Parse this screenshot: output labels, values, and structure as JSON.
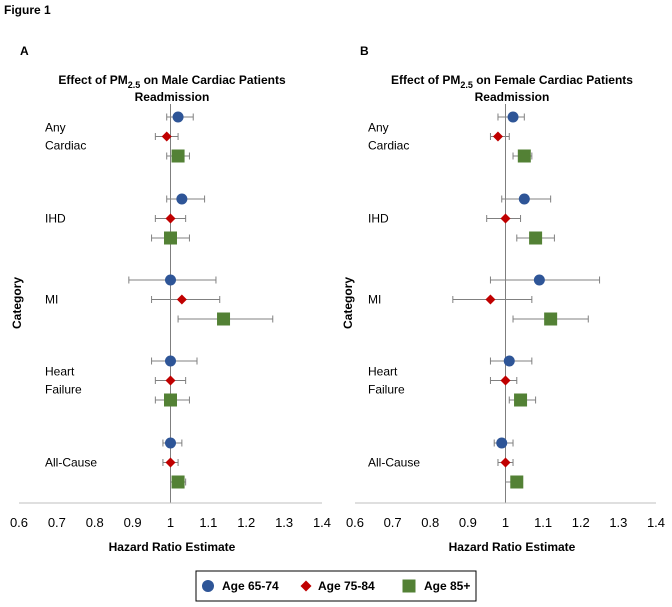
{
  "figure_title": "Figure 1",
  "legend": [
    {
      "label": "Age 65-74",
      "color": "#2E5597",
      "marker": "circle"
    },
    {
      "label": "Age 75-84",
      "color": "#C00000",
      "marker": "diamond"
    },
    {
      "label": "Age 85+",
      "color": "#538135",
      "marker": "square"
    }
  ],
  "chart_data": [
    {
      "type": "scatter",
      "panel": "A",
      "title_line1_pre": "Effect of PM",
      "title_sub": "2.5",
      "title_line1_post": " on Male Cardiac Patients",
      "title_line2": "Readmission",
      "xlabel": "Hazard Ratio Estimate",
      "ylabel": "Category",
      "xlim": [
        0.6,
        1.4
      ],
      "xticks": [
        "0.6",
        "0.7",
        "0.8",
        "0.9",
        "1",
        "1.1",
        "1.2",
        "1.3",
        "1.4"
      ],
      "categories": [
        {
          "lines": [
            "Any",
            "Cardiac"
          ]
        },
        {
          "lines": [
            "IHD"
          ]
        },
        {
          "lines": [
            "MI"
          ]
        },
        {
          "lines": [
            "Heart",
            "Failure"
          ]
        },
        {
          "lines": [
            "All-Cause"
          ]
        }
      ],
      "series": [
        {
          "name": "Age 65-74",
          "points": [
            {
              "est": 1.02,
              "lo": 0.99,
              "hi": 1.06
            },
            {
              "est": 1.03,
              "lo": 0.99,
              "hi": 1.09
            },
            {
              "est": 1.0,
              "lo": 0.89,
              "hi": 1.12
            },
            {
              "est": 1.0,
              "lo": 0.95,
              "hi": 1.07
            },
            {
              "est": 1.0,
              "lo": 0.98,
              "hi": 1.03
            }
          ]
        },
        {
          "name": "Age 75-84",
          "points": [
            {
              "est": 0.99,
              "lo": 0.96,
              "hi": 1.02
            },
            {
              "est": 1.0,
              "lo": 0.96,
              "hi": 1.04
            },
            {
              "est": 1.03,
              "lo": 0.95,
              "hi": 1.13
            },
            {
              "est": 1.0,
              "lo": 0.96,
              "hi": 1.04
            },
            {
              "est": 1.0,
              "lo": 0.98,
              "hi": 1.02
            }
          ]
        },
        {
          "name": "Age 85+",
          "points": [
            {
              "est": 1.02,
              "lo": 0.99,
              "hi": 1.05
            },
            {
              "est": 1.0,
              "lo": 0.95,
              "hi": 1.05
            },
            {
              "est": 1.14,
              "lo": 1.02,
              "hi": 1.27
            },
            {
              "est": 1.0,
              "lo": 0.96,
              "hi": 1.05
            },
            {
              "est": 1.02,
              "lo": 1.0,
              "hi": 1.04
            }
          ]
        }
      ]
    },
    {
      "type": "scatter",
      "panel": "B",
      "title_line1_pre": "Effect of PM",
      "title_sub": "2.5",
      "title_line1_post": " on Female Cardiac Patients",
      "title_line2": "Readmission",
      "xlabel": "Hazard Ratio Estimate",
      "ylabel": "Category",
      "xlim": [
        0.6,
        1.4
      ],
      "xticks": [
        "0.6",
        "0.7",
        "0.8",
        "0.9",
        "1",
        "1.1",
        "1.2",
        "1.3",
        "1.4"
      ],
      "categories": [
        {
          "lines": [
            "Any",
            "Cardiac"
          ]
        },
        {
          "lines": [
            "IHD"
          ]
        },
        {
          "lines": [
            "MI"
          ]
        },
        {
          "lines": [
            "Heart",
            "Failure"
          ]
        },
        {
          "lines": [
            "All-Cause"
          ]
        }
      ],
      "series": [
        {
          "name": "Age 65-74",
          "points": [
            {
              "est": 1.02,
              "lo": 0.98,
              "hi": 1.05
            },
            {
              "est": 1.05,
              "lo": 0.99,
              "hi": 1.12
            },
            {
              "est": 1.09,
              "lo": 0.96,
              "hi": 1.25
            },
            {
              "est": 1.01,
              "lo": 0.96,
              "hi": 1.07
            },
            {
              "est": 0.99,
              "lo": 0.97,
              "hi": 1.02
            }
          ]
        },
        {
          "name": "Age 75-84",
          "points": [
            {
              "est": 0.98,
              "lo": 0.96,
              "hi": 1.01
            },
            {
              "est": 1.0,
              "lo": 0.95,
              "hi": 1.04
            },
            {
              "est": 0.96,
              "lo": 0.86,
              "hi": 1.07
            },
            {
              "est": 1.0,
              "lo": 0.96,
              "hi": 1.03
            },
            {
              "est": 1.0,
              "lo": 0.98,
              "hi": 1.02
            }
          ]
        },
        {
          "name": "Age 85+",
          "points": [
            {
              "est": 1.05,
              "lo": 1.02,
              "hi": 1.07
            },
            {
              "est": 1.08,
              "lo": 1.03,
              "hi": 1.13
            },
            {
              "est": 1.12,
              "lo": 1.02,
              "hi": 1.22
            },
            {
              "est": 1.04,
              "lo": 1.01,
              "hi": 1.08
            },
            {
              "est": 1.03,
              "lo": 1.0,
              "hi": 1.04
            }
          ]
        }
      ]
    }
  ]
}
